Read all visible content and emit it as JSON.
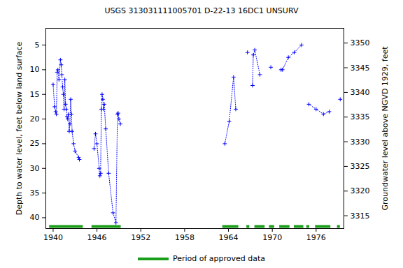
{
  "chart_data": {
    "type": "line",
    "title": "USGS 313031111005701 D-22-13 16DC1 UNSURV",
    "y_label": "Depth to water level, feet below land surface",
    "y2_label": "Groundwater level above NGVD 1929, feet",
    "x": [
      1940.0,
      1940.2,
      1940.35,
      1940.45,
      1940.55,
      1940.65,
      1940.8,
      1941.0,
      1941.1,
      1941.2,
      1941.3,
      1941.4,
      1941.5,
      1941.6,
      1941.7,
      1941.8,
      1941.9,
      1942.0,
      1942.1,
      1942.2,
      1942.3,
      1942.4,
      1942.5,
      1942.6,
      1942.8,
      1943.0,
      1943.5,
      1943.6,
      1944.5,
      1945.6,
      1945.8,
      1946.0,
      1946.3,
      1946.4,
      1946.5,
      1946.6,
      1946.7,
      1946.8,
      1946.9,
      1947.0,
      1947.2,
      1947.6,
      1948.2,
      1948.6,
      1948.8,
      1948.9,
      1949.0,
      1949.2,
      1956,
      1963.5,
      1964.1,
      1964.7,
      1965.0,
      1965.8,
      1966.6,
      1967.0,
      1967.3,
      1967.4,
      1967.6,
      1968.3,
      1969.0,
      1969.8,
      1970.5,
      1971.2,
      1971.4,
      1972.2,
      1973.0,
      1974.0,
      1974.5,
      1975.0,
      1976.0,
      1977.0,
      1977.8,
      1978.5,
      1979.3
    ],
    "series": [
      {
        "color": "#0000ff",
        "marker": "plus",
        "line_style": "dotted",
        "values": [
          13,
          17.5,
          18.5,
          19,
          10.5,
          10,
          12,
          8,
          9,
          11,
          13.5,
          15,
          18,
          12,
          17,
          18,
          19.5,
          20,
          19,
          22.5,
          21,
          16,
          19,
          22.5,
          25,
          26.5,
          27.8,
          28.2,
          null,
          26,
          23,
          25,
          30,
          31.5,
          31,
          18,
          15,
          16,
          18,
          17,
          22,
          31,
          39,
          41,
          19,
          18.8,
          20,
          21,
          null,
          25,
          20.5,
          11.5,
          18,
          null,
          6.5,
          null,
          13.2,
          7,
          6,
          11,
          null,
          9.5,
          null,
          10,
          10,
          7.5,
          6.5,
          5,
          null,
          17,
          18,
          19,
          18.5,
          null,
          16
        ]
      }
    ],
    "approved_periods": {
      "name": "Period of approved data",
      "color": "#1a9e1a",
      "values": [
        [
          1939.5,
          1944.1
        ],
        [
          1945.3,
          1949.3
        ],
        [
          1963.2,
          1965.4
        ],
        [
          1966.5,
          1966.9
        ],
        [
          1967.6,
          1969.0
        ],
        [
          1969.6,
          1970.3
        ],
        [
          1971.0,
          1972.4
        ],
        [
          1973.0,
          1974.3
        ],
        [
          1974.7,
          1975.1
        ],
        [
          1975.9,
          1978.0
        ],
        [
          1978.9,
          1979.3
        ]
      ]
    },
    "xlim": [
      1939.0,
      1979.8
    ],
    "xticks": [
      1940,
      1946,
      1952,
      1958,
      1964,
      1970,
      1976
    ],
    "ylim": [
      1.6,
      42.2
    ],
    "yticks": [
      5,
      10,
      15,
      20,
      25,
      30,
      35,
      40
    ],
    "y2lim": [
      3312.4,
      3353.0
    ],
    "y2ticks": [
      3315,
      3320,
      3325,
      3330,
      3335,
      3340,
      3345,
      3350
    ],
    "grid": false,
    "legend": "bottom"
  }
}
